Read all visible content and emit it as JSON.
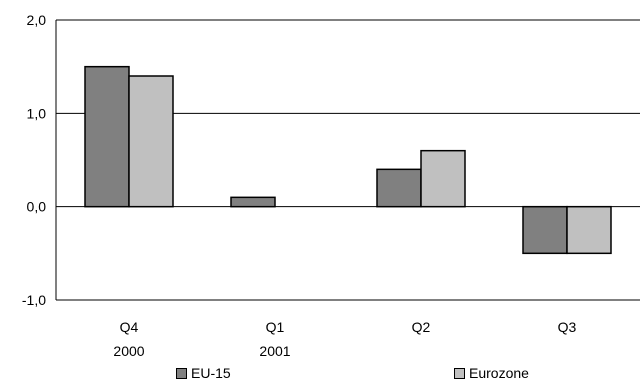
{
  "chart_data": {
    "type": "bar",
    "categories": [
      {
        "line1": "Q4",
        "line2": "2000"
      },
      {
        "line1": "Q1",
        "line2": "2001"
      },
      {
        "line1": "Q2",
        "line2": ""
      },
      {
        "line1": "Q3",
        "line2": ""
      }
    ],
    "series": [
      {
        "name": "EU-15",
        "color": "#808080",
        "values": [
          1.5,
          0.1,
          0.4,
          -0.5
        ]
      },
      {
        "name": "Eurozone",
        "color": "#c0c0c0",
        "values": [
          1.4,
          null,
          0.6,
          -0.5
        ]
      }
    ],
    "ylim": [
      -1.0,
      2.0
    ],
    "yticks": [
      "2,0",
      "1,0",
      "0,0",
      "-1,0"
    ],
    "ytick_values": [
      2.0,
      1.0,
      0.0,
      -1.0
    ],
    "grid": true,
    "legend_position": "bottom",
    "title": "",
    "xlabel": "",
    "ylabel": ""
  }
}
